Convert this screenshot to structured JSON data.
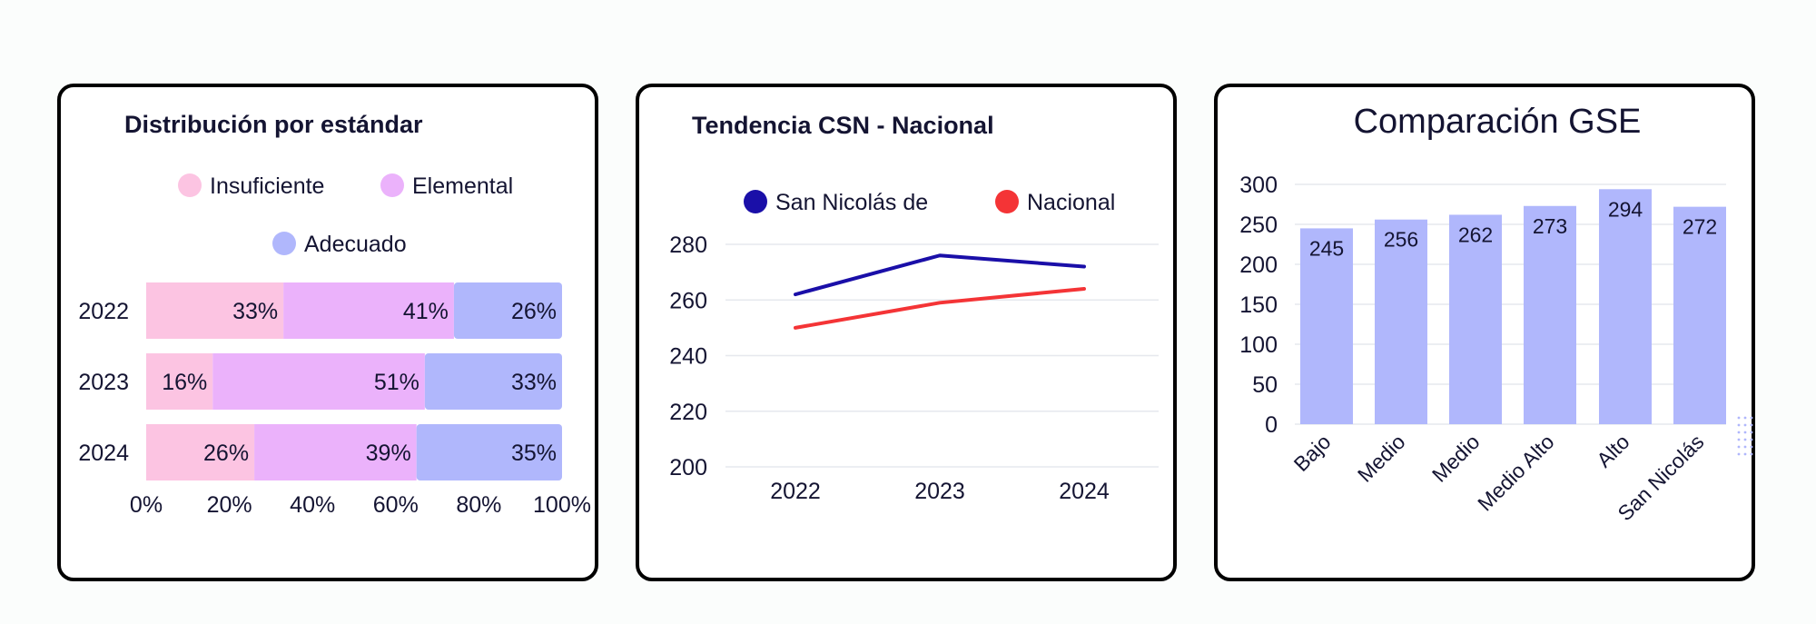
{
  "colors": {
    "insuficiente": "#fcc4e2",
    "elemental": "#ebb2fb",
    "adecuado": "#b0b7fc",
    "san_nicolas": "#1a0fa8",
    "nacional": "#f43436",
    "gse_bar": "#b0b7fc"
  },
  "chart_data": [
    {
      "type": "bar",
      "orientation": "horizontal-stacked-100",
      "title": "Distribución por estándar",
      "categories": [
        "2022",
        "2023",
        "2024"
      ],
      "series": [
        {
          "name": "Insuficiente",
          "values": [
            33,
            16,
            26
          ],
          "labels": [
            "33%",
            "16%",
            "26%"
          ]
        },
        {
          "name": "Elemental",
          "values": [
            41,
            51,
            39
          ],
          "labels": [
            "41%",
            "51%",
            "39%"
          ]
        },
        {
          "name": "Adecuado",
          "values": [
            26,
            33,
            35
          ],
          "labels": [
            "26%",
            "33%",
            "35%"
          ]
        }
      ],
      "x_ticks": [
        "0%",
        "20%",
        "40%",
        "60%",
        "80%",
        "100%"
      ],
      "xlim": [
        0,
        100
      ],
      "legend": "top",
      "grid": false
    },
    {
      "type": "line",
      "title": "Tendencia CSN - Nacional",
      "x": [
        "2022",
        "2023",
        "2024"
      ],
      "series": [
        {
          "name": "San Nicolás de",
          "values": [
            262,
            276,
            272
          ]
        },
        {
          "name": "Nacional",
          "values": [
            250,
            259,
            264
          ]
        }
      ],
      "y_ticks": [
        "200",
        "220",
        "240",
        "260",
        "280"
      ],
      "ylim": [
        200,
        280
      ],
      "legend": "top",
      "grid": true
    },
    {
      "type": "bar",
      "title": "Comparación GSE",
      "categories": [
        "Bajo",
        "Medio",
        "Medio",
        "Medio Alto",
        "Alto",
        "San Nicolás"
      ],
      "values": [
        245,
        256,
        262,
        273,
        294,
        272
      ],
      "labels": [
        "245",
        "256",
        "262",
        "273",
        "294",
        "272"
      ],
      "y_ticks": [
        "0",
        "50",
        "100",
        "150",
        "200",
        "250",
        "300"
      ],
      "ylim": [
        0,
        300
      ],
      "grid": true
    }
  ]
}
